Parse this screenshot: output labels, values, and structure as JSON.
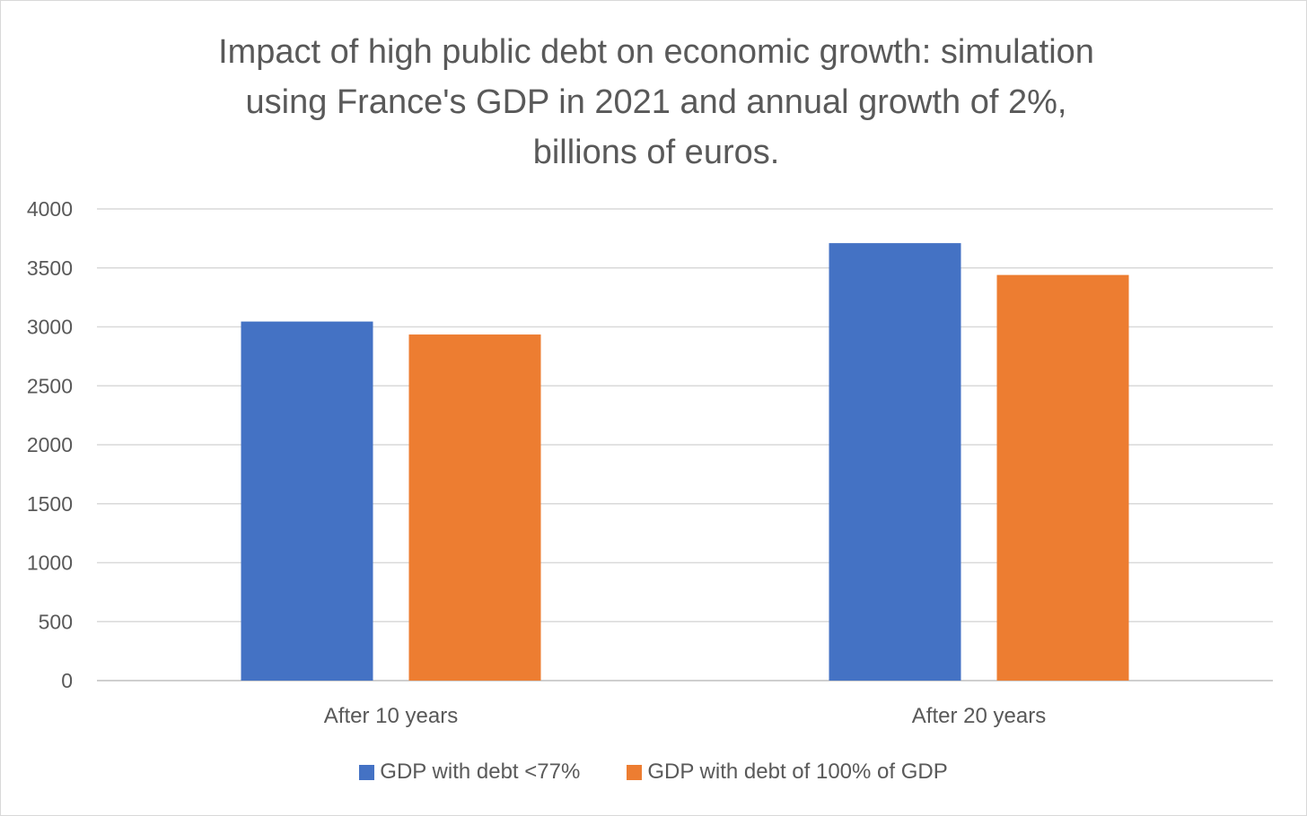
{
  "chart_data": {
    "type": "bar",
    "title": "Impact of high public debt on economic growth: simulation using France's GDP in 2021 and annual growth of 2%, billions of euros.",
    "title_lines": [
      "Impact of high public debt on economic growth: simulation",
      "using France's GDP in 2021 and annual growth of 2%,",
      "billions of euros."
    ],
    "categories": [
      "After 10 years",
      "After 20 years"
    ],
    "series": [
      {
        "name": "GDP with debt <77%",
        "color": "#4472C4",
        "values": [
          3045,
          3710
        ]
      },
      {
        "name": "GDP with debt of 100% of GDP",
        "color": "#ED7D31",
        "values": [
          2935,
          3440
        ]
      }
    ],
    "ylim": [
      0,
      4000
    ],
    "yticks": [
      0,
      500,
      1000,
      1500,
      2000,
      2500,
      3000,
      3500,
      4000
    ],
    "grid": true,
    "legend_position": "bottom"
  }
}
